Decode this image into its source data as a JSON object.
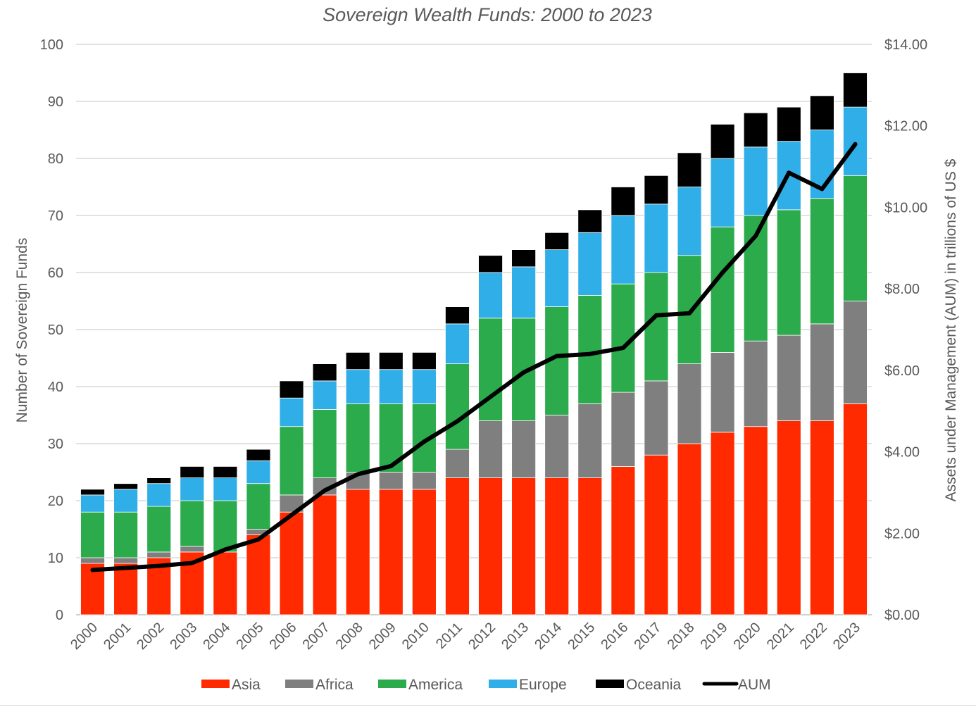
{
  "chart_data": {
    "type": "bar",
    "stacked": true,
    "title": "Sovereign Wealth Funds: 2000 to 2023",
    "categories": [
      "2000",
      "2001",
      "2002",
      "2003",
      "2004",
      "2005",
      "2006",
      "2007",
      "2008",
      "2009",
      "2010",
      "2011",
      "2012",
      "2013",
      "2014",
      "2015",
      "2016",
      "2017",
      "2018",
      "2019",
      "2020",
      "2021",
      "2022",
      "2023"
    ],
    "ylabel": "Number of Sovereign Funds",
    "ylim": [
      0,
      100
    ],
    "yticks": [
      "0",
      "10",
      "20",
      "30",
      "40",
      "50",
      "60",
      "70",
      "80",
      "90",
      "100"
    ],
    "y2label": "Assets under Management (AUM) in trillions of US $",
    "y2lim": [
      0,
      14
    ],
    "y2ticks": [
      "$0.00",
      "$2.00",
      "$4.00",
      "$6.00",
      "$8.00",
      "$10.00",
      "$12.00",
      "$14.00"
    ],
    "grid": true,
    "legend_position": "bottom",
    "series": [
      {
        "name": "Asia",
        "color": "#ff2a00",
        "values": [
          9,
          9,
          10,
          11,
          11,
          14,
          18,
          21,
          22,
          22,
          22,
          24,
          24,
          24,
          24,
          24,
          26,
          28,
          30,
          32,
          33,
          34,
          34,
          37
        ]
      },
      {
        "name": "Africa",
        "color": "#7f7f7f",
        "values": [
          1,
          1,
          1,
          1,
          0,
          1,
          3,
          3,
          3,
          3,
          3,
          5,
          10,
          10,
          11,
          13,
          13,
          13,
          14,
          14,
          15,
          15,
          17,
          18
        ]
      },
      {
        "name": "America",
        "color": "#2bab4b",
        "values": [
          8,
          8,
          8,
          8,
          9,
          8,
          12,
          12,
          12,
          12,
          12,
          15,
          18,
          18,
          19,
          19,
          19,
          19,
          19,
          22,
          22,
          22,
          22,
          22
        ]
      },
      {
        "name": "Europe",
        "color": "#30aee8",
        "values": [
          3,
          4,
          4,
          4,
          4,
          4,
          5,
          5,
          6,
          6,
          6,
          7,
          8,
          9,
          10,
          11,
          12,
          12,
          12,
          12,
          12,
          12,
          12,
          12
        ]
      },
      {
        "name": "Oceania",
        "color": "#000000",
        "values": [
          1,
          1,
          1,
          2,
          2,
          2,
          3,
          3,
          3,
          3,
          3,
          3,
          3,
          3,
          3,
          4,
          5,
          5,
          6,
          6,
          6,
          6,
          6,
          6
        ]
      }
    ],
    "line_series": {
      "name": "AUM",
      "axis": "right",
      "color": "#000000",
      "values": [
        1.1,
        1.15,
        1.2,
        1.27,
        1.6,
        1.85,
        2.45,
        3.05,
        3.45,
        3.65,
        4.25,
        4.75,
        5.35,
        5.95,
        6.35,
        6.4,
        6.55,
        7.35,
        7.4,
        8.4,
        9.3,
        10.85,
        10.45,
        11.55
      ]
    }
  }
}
